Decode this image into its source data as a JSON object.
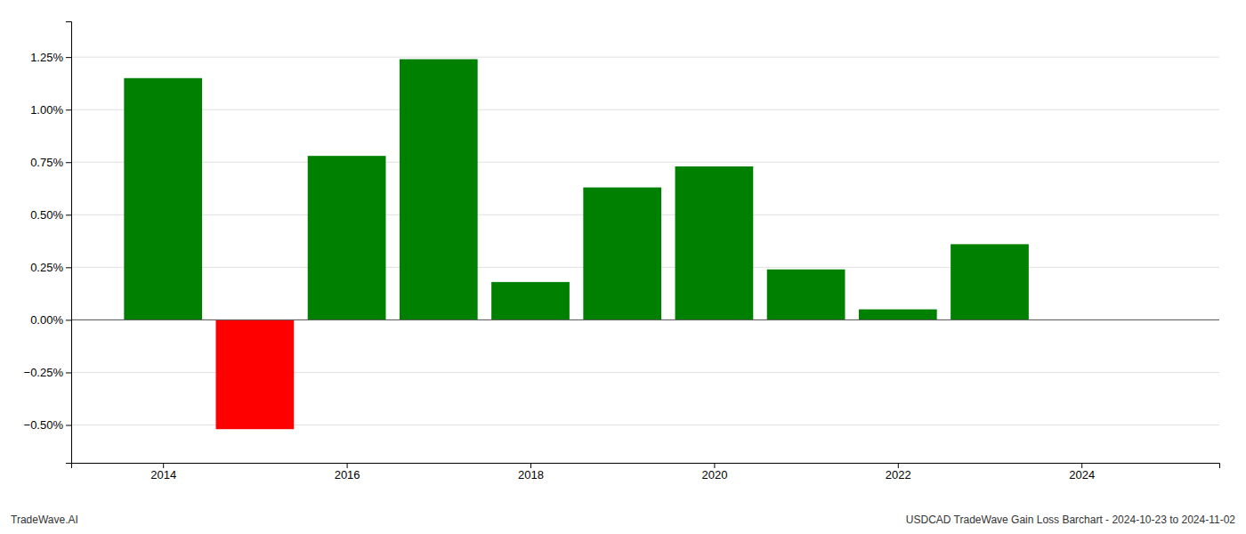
{
  "chart_data": {
    "type": "bar",
    "x": [
      2014,
      2015,
      2016,
      2017,
      2018,
      2019,
      2020,
      2021,
      2022,
      2023
    ],
    "values": [
      1.15,
      -0.52,
      0.78,
      1.24,
      0.18,
      0.63,
      0.73,
      0.24,
      0.05,
      0.36
    ],
    "colors": [
      "#008000",
      "#ff0000",
      "#008000",
      "#008000",
      "#008000",
      "#008000",
      "#008000",
      "#008000",
      "#008000",
      "#008000"
    ],
    "xlim": [
      2013.0,
      2025.5
    ],
    "xticks": [
      2014,
      2016,
      2018,
      2020,
      2022,
      2024
    ],
    "ylim": [
      -0.68,
      1.42
    ],
    "yticks": [
      {
        "value": -0.5,
        "label": "−0.50%"
      },
      {
        "value": -0.25,
        "label": "−0.25%"
      },
      {
        "value": 0.0,
        "label": "0.00%"
      },
      {
        "value": 0.25,
        "label": "0.25%"
      },
      {
        "value": 0.5,
        "label": "0.50%"
      },
      {
        "value": 0.75,
        "label": "0.75%"
      },
      {
        "value": 1.0,
        "label": "1.00%"
      },
      {
        "value": 1.25,
        "label": "1.25%"
      }
    ],
    "grid": true,
    "annotations": [
      "TradeWave.AI",
      "USDCAD TradeWave Gain Loss Barchart - 2024-10-23 to 2024-11-02"
    ]
  }
}
